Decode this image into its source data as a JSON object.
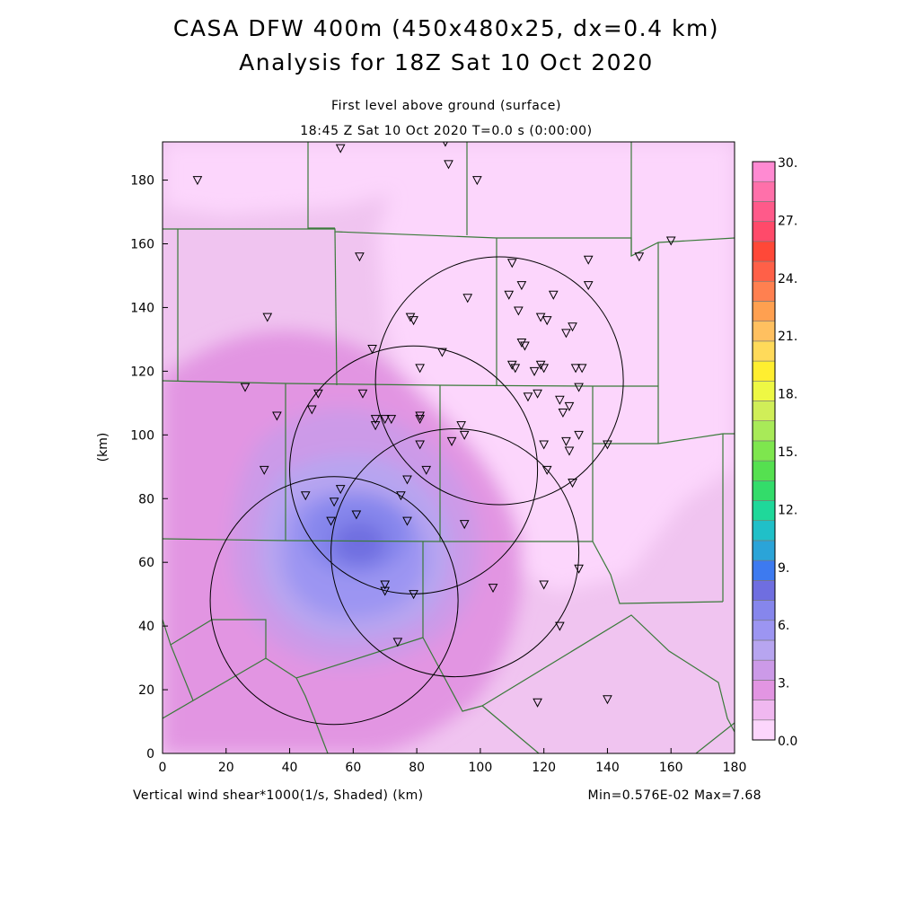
{
  "title_line1": "CASA DFW 400m (450x480x25, dx=0.4 km)",
  "title_line2": "Analysis for 18Z Sat 10 Oct 2020",
  "level_label": "First level above ground (surface)",
  "time_label": "18:45 Z Sat 10 Oct 2020   T=0.0 s (0:00:00)",
  "footer_left": "Vertical wind shear*1000(1/s, Shaded)  (km)",
  "footer_right": "Min=0.576E-02 Max=7.68",
  "chart_data": {
    "type": "heatmap",
    "xlabel": "(km)",
    "ylabel": "(km)",
    "xlim": [
      0,
      180
    ],
    "ylim": [
      0,
      192
    ],
    "x_ticks": [
      0,
      20,
      40,
      60,
      80,
      100,
      120,
      140,
      160,
      180
    ],
    "y_ticks": [
      0,
      20,
      40,
      60,
      80,
      100,
      120,
      140,
      160,
      180
    ],
    "field": {
      "name": "Vertical wind shear*1000",
      "units": "1/s",
      "min": 0.00576,
      "max": 7.68,
      "max_center_km": [
        62,
        70
      ]
    },
    "colorbar": {
      "labels": [
        "30.",
        "27.",
        "24.",
        "21.",
        "18.",
        "15.",
        "12.",
        "9.",
        "6.",
        "3.",
        "0.0"
      ],
      "levels_low_to_high": [
        "#fcd6fc",
        "#f0b8f0",
        "#e295e2",
        "#cc9ae8",
        "#b7a5f0",
        "#9c95f2",
        "#8686ec",
        "#6f6ee0",
        "#3d7af0",
        "#2ba4d8",
        "#20c0c8",
        "#1fd89a",
        "#33dc6a",
        "#55e050",
        "#7ee64e",
        "#a8ea58",
        "#d0ee58",
        "#eef844",
        "#ffee30",
        "#ffda5a",
        "#ffc060",
        "#ffa050",
        "#ff8050",
        "#ff6048",
        "#ff4838",
        "#ff4a6a",
        "#ff5a8a",
        "#ff70aa",
        "#ff8ad2"
      ]
    },
    "radar_rings": [
      {
        "center": [
          106,
          117
        ],
        "radius": 39
      },
      {
        "center": [
          79,
          89
        ],
        "radius": 39
      },
      {
        "center": [
          92,
          63
        ],
        "radius": 39
      },
      {
        "center": [
          54,
          48
        ],
        "radius": 39
      }
    ],
    "stations": [
      [
        11,
        180
      ],
      [
        56,
        190
      ],
      [
        89,
        192
      ],
      [
        90,
        185
      ],
      [
        99,
        180
      ],
      [
        160,
        161
      ],
      [
        150,
        156
      ],
      [
        62,
        156
      ],
      [
        110,
        154
      ],
      [
        134,
        155
      ],
      [
        113,
        147
      ],
      [
        134,
        147
      ],
      [
        109,
        144
      ],
      [
        123,
        144
      ],
      [
        96,
        143
      ],
      [
        112,
        139
      ],
      [
        119,
        137
      ],
      [
        121,
        136
      ],
      [
        78,
        137
      ],
      [
        79,
        136
      ],
      [
        33,
        137
      ],
      [
        129,
        134
      ],
      [
        127,
        132
      ],
      [
        113,
        129
      ],
      [
        114,
        128
      ],
      [
        66,
        127
      ],
      [
        88,
        126
      ],
      [
        110,
        122
      ],
      [
        111,
        121
      ],
      [
        119,
        122
      ],
      [
        120,
        121
      ],
      [
        81,
        121
      ],
      [
        130,
        121
      ],
      [
        132,
        121
      ],
      [
        117,
        120
      ],
      [
        26,
        115
      ],
      [
        131,
        115
      ],
      [
        118,
        113
      ],
      [
        115,
        112
      ],
      [
        49,
        113
      ],
      [
        63,
        113
      ],
      [
        125,
        111
      ],
      [
        128,
        109
      ],
      [
        126,
        107
      ],
      [
        47,
        108
      ],
      [
        36,
        106
      ],
      [
        81,
        106
      ],
      [
        81,
        105
      ],
      [
        67,
        105
      ],
      [
        70,
        105
      ],
      [
        72,
        105
      ],
      [
        67,
        103
      ],
      [
        94,
        103
      ],
      [
        95,
        100
      ],
      [
        131,
        100
      ],
      [
        127,
        98
      ],
      [
        91,
        98
      ],
      [
        120,
        97
      ],
      [
        140,
        97
      ],
      [
        81,
        97
      ],
      [
        128,
        95
      ],
      [
        121,
        89
      ],
      [
        32,
        89
      ],
      [
        83,
        89
      ],
      [
        77,
        86
      ],
      [
        129,
        85
      ],
      [
        56,
        83
      ],
      [
        45,
        81
      ],
      [
        54,
        79
      ],
      [
        75,
        81
      ],
      [
        61,
        75
      ],
      [
        77,
        73
      ],
      [
        53,
        73
      ],
      [
        95,
        72
      ],
      [
        131,
        58
      ],
      [
        120,
        53
      ],
      [
        104,
        52
      ],
      [
        70,
        53
      ],
      [
        70,
        51
      ],
      [
        79,
        50
      ],
      [
        125,
        40
      ],
      [
        74,
        35
      ],
      [
        118,
        16
      ],
      [
        140,
        17
      ]
    ]
  }
}
